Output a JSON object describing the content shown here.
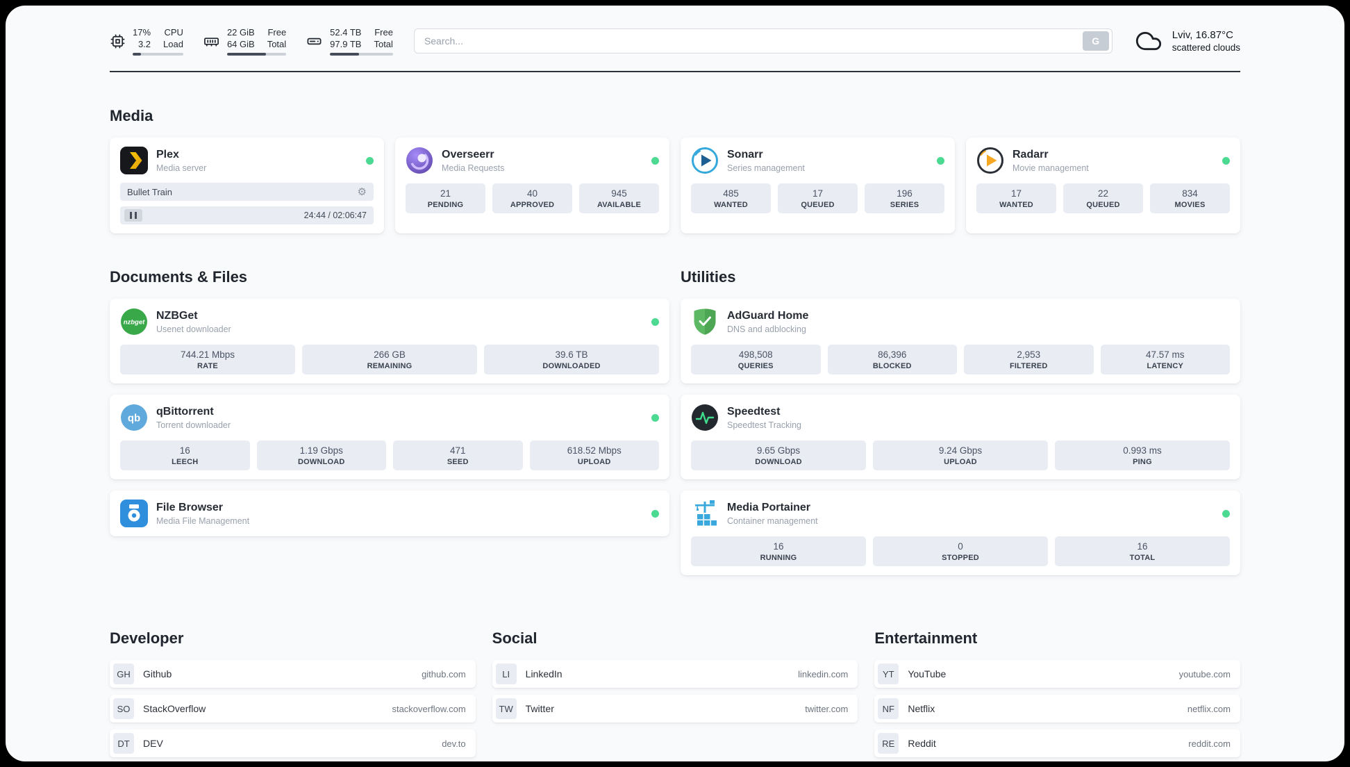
{
  "topbar": {
    "cpu": {
      "value1": "17%",
      "label1": "CPU",
      "value2": "3.2",
      "label2": "Load",
      "percent": 17
    },
    "ram": {
      "value1": "22 GiB",
      "label1": "Free",
      "value2": "64 GiB",
      "label2": "Total",
      "percent": 66
    },
    "disk": {
      "value1": "52.4 TB",
      "label1": "Free",
      "value2": "97.9 TB",
      "label2": "Total",
      "percent": 46
    },
    "search": {
      "placeholder": "Search...",
      "button_label": "G"
    },
    "weather": {
      "location": "Lviv, 16.87°C",
      "condition": "scattered clouds"
    }
  },
  "media": {
    "heading": "Media",
    "plex": {
      "title": "Plex",
      "subtitle": "Media server",
      "now_playing": "Bullet Train",
      "time": "24:44 / 02:06:47"
    },
    "overseerr": {
      "title": "Overseerr",
      "subtitle": "Media Requests",
      "stats": [
        {
          "value": "21",
          "label": "PENDING"
        },
        {
          "value": "40",
          "label": "APPROVED"
        },
        {
          "value": "945",
          "label": "AVAILABLE"
        }
      ]
    },
    "sonarr": {
      "title": "Sonarr",
      "subtitle": "Series management",
      "stats": [
        {
          "value": "485",
          "label": "WANTED"
        },
        {
          "value": "17",
          "label": "QUEUED"
        },
        {
          "value": "196",
          "label": "SERIES"
        }
      ]
    },
    "radarr": {
      "title": "Radarr",
      "subtitle": "Movie management",
      "stats": [
        {
          "value": "17",
          "label": "WANTED"
        },
        {
          "value": "22",
          "label": "QUEUED"
        },
        {
          "value": "834",
          "label": "MOVIES"
        }
      ]
    }
  },
  "documents": {
    "heading": "Documents & Files",
    "nzbget": {
      "title": "NZBGet",
      "subtitle": "Usenet downloader",
      "stats": [
        {
          "value": "744.21 Mbps",
          "label": "RATE"
        },
        {
          "value": "266 GB",
          "label": "REMAINING"
        },
        {
          "value": "39.6 TB",
          "label": "DOWNLOADED"
        }
      ]
    },
    "qbittorrent": {
      "title": "qBittorrent",
      "subtitle": "Torrent downloader",
      "stats": [
        {
          "value": "16",
          "label": "LEECH"
        },
        {
          "value": "1.19 Gbps",
          "label": "DOWNLOAD"
        },
        {
          "value": "471",
          "label": "SEED"
        },
        {
          "value": "618.52 Mbps",
          "label": "UPLOAD"
        }
      ]
    },
    "filebrowser": {
      "title": "File Browser",
      "subtitle": "Media File Management"
    }
  },
  "utilities": {
    "heading": "Utilities",
    "adguard": {
      "title": "AdGuard Home",
      "subtitle": "DNS and adblocking",
      "stats": [
        {
          "value": "498,508",
          "label": "QUERIES"
        },
        {
          "value": "86,396",
          "label": "BLOCKED"
        },
        {
          "value": "2,953",
          "label": "FILTERED"
        },
        {
          "value": "47.57 ms",
          "label": "LATENCY"
        }
      ]
    },
    "speedtest": {
      "title": "Speedtest",
      "subtitle": "Speedtest Tracking",
      "stats": [
        {
          "value": "9.65 Gbps",
          "label": "DOWNLOAD"
        },
        {
          "value": "9.24 Gbps",
          "label": "UPLOAD"
        },
        {
          "value": "0.993 ms",
          "label": "PING"
        }
      ]
    },
    "portainer": {
      "title": "Media Portainer",
      "subtitle": "Container management",
      "stats": [
        {
          "value": "16",
          "label": "RUNNING"
        },
        {
          "value": "0",
          "label": "STOPPED"
        },
        {
          "value": "16",
          "label": "TOTAL"
        }
      ]
    }
  },
  "bookmarks": {
    "developer": {
      "heading": "Developer",
      "items": [
        {
          "abbr": "GH",
          "name": "Github",
          "url": "github.com"
        },
        {
          "abbr": "SO",
          "name": "StackOverflow",
          "url": "stackoverflow.com"
        },
        {
          "abbr": "DT",
          "name": "DEV",
          "url": "dev.to"
        }
      ]
    },
    "social": {
      "heading": "Social",
      "items": [
        {
          "abbr": "LI",
          "name": "LinkedIn",
          "url": "linkedin.com"
        },
        {
          "abbr": "TW",
          "name": "Twitter",
          "url": "twitter.com"
        }
      ]
    },
    "entertainment": {
      "heading": "Entertainment",
      "items": [
        {
          "abbr": "YT",
          "name": "YouTube",
          "url": "youtube.com"
        },
        {
          "abbr": "NF",
          "name": "Netflix",
          "url": "netflix.com"
        },
        {
          "abbr": "RE",
          "name": "Reddit",
          "url": "reddit.com"
        }
      ]
    }
  }
}
